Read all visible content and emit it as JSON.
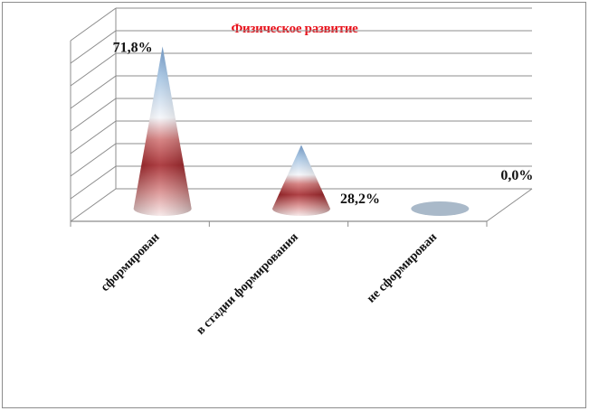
{
  "chart_data": {
    "type": "bar",
    "subtype": "3d-cone",
    "title": "Физическое развитие",
    "categories": [
      "сформирован",
      "в стадии формирования",
      "не сформирован"
    ],
    "values": [
      71.8,
      28.2,
      0.0
    ],
    "data_labels": [
      "71,8%",
      "28,2%",
      "0,0%"
    ],
    "ylim": [
      0,
      80
    ],
    "grid": true,
    "legend": "none",
    "colors": {
      "title": "#e8101a",
      "cone_top": "#5b86b8",
      "cone_bottom": "#a01f24",
      "grid": "#8c8c8c"
    }
  }
}
